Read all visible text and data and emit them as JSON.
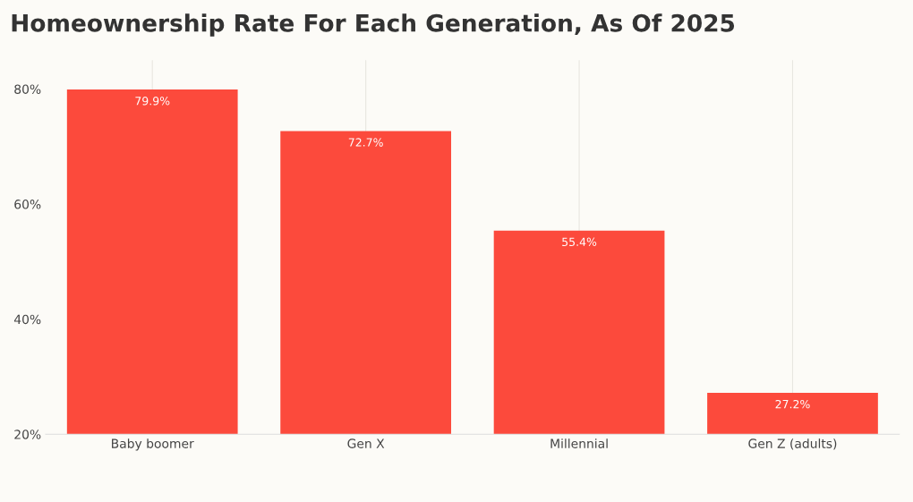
{
  "chart_data": {
    "type": "bar",
    "title": "Homeownership Rate For Each Generation, As Of 2025",
    "categories": [
      "Baby boomer",
      "Gen X",
      "Millennial",
      "Gen Z (adults)"
    ],
    "values": [
      79.9,
      72.7,
      55.4,
      27.2
    ],
    "value_labels": [
      "79.9%",
      "72.7%",
      "55.4%",
      "27.2%"
    ],
    "color": "#fc4a3c",
    "ylim": [
      20,
      85
    ],
    "yticks": [
      {
        "value": 20,
        "label": "20%"
      },
      {
        "value": 40,
        "label": "40%"
      },
      {
        "value": 60,
        "label": "60%"
      },
      {
        "value": 80,
        "label": "80%"
      }
    ],
    "grid": "x"
  }
}
